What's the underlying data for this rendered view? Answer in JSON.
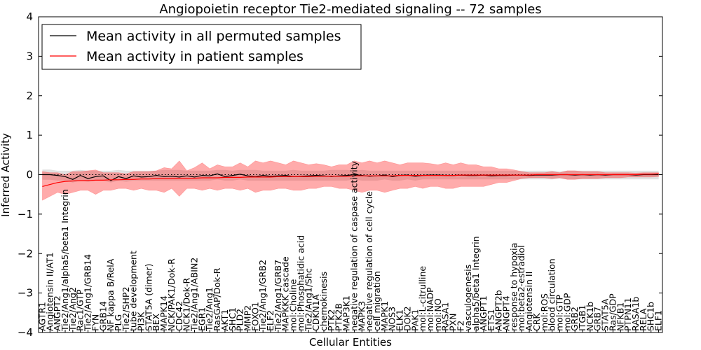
{
  "chart_data": {
    "type": "line",
    "title": "Angiopoietin receptor Tie2-mediated signaling -- 72 samples",
    "xlabel": "Cellular Entities",
    "ylabel": "Inferred Activity",
    "ylim": [
      -4,
      4
    ],
    "yticks": [
      "4",
      "3",
      "2",
      "1",
      "0",
      "−1",
      "−2",
      "−3",
      "−4"
    ],
    "legend_location": "top-left",
    "categories": [
      "AGTR1",
      "Angiotensin II/AT1",
      "ANGPT2",
      "Tie2/Ang1/alpha5/beta1 Integrin",
      "Tie2/Ang2",
      "Rac1/GTP",
      "Tie2/Ang1/GRB14",
      "FYN",
      "GRB14",
      "NF kappa B/RelA",
      "PLG",
      "Tie2/SHP2",
      "tube development",
      "PI3K",
      "STAT5A (dimer)",
      "BEX",
      "MAPK14",
      "NCK/PAK1/Dok-R",
      "CDC42",
      "NCK1/Dok-R",
      "Tie2/Ang1/ABIN2",
      "EGR1",
      "Tie2/Ang1",
      "RasGAP/Dok-R",
      "AKT1",
      "SHC1",
      "PLD2",
      "MMP2",
      "FOXO1",
      "Tie2/Ang1/GRB2",
      "ELF2",
      "Tie2/Ang1/GRB7",
      "MAPKKK cascade",
      "mol:Choline",
      "mol:Phosphatidic acid",
      "Tie2/Ang1/Shc",
      "CDKN1A",
      "chemokinesis",
      "PTK2",
      "PTK2B",
      "MAP3K1",
      "negative regulation of caspase activity",
      "MAPK3",
      "negative regulation of cell cycle",
      "cell migration",
      "MAPK1",
      "NOS3",
      "ELK1",
      "DOK2",
      "PAK1",
      "mol:L-citrulline",
      "mol:NADP",
      "mol:NO",
      "RASA1",
      "PXN",
      "F2",
      "vasculogenesis",
      "alpha5/beta1 Integrin",
      "ANGPT1",
      "ETS1",
      "ANGPT2b",
      "ANGPT4",
      "response to hypoxia",
      "mol:beta2-estradiol",
      "Angiotensin II",
      "CRK",
      "mol:ROS",
      "blood circulation",
      "mol:GTP",
      "mol:GDP",
      "GRB2",
      "ITGB1",
      "NCK1b",
      "GRB7",
      "STAT5A",
      "Ras/GDP",
      "NFKB1",
      "PTPN11",
      "RASA1b",
      "RELA",
      "SHC1b",
      "ELF1"
    ],
    "series": [
      {
        "name": "Mean activity in all permuted samples",
        "color": "#000000",
        "values": [
          0.0,
          0.0,
          -0.02,
          -0.05,
          -0.12,
          -0.02,
          -0.1,
          -0.05,
          -0.03,
          -0.15,
          -0.05,
          -0.1,
          -0.03,
          -0.06,
          -0.05,
          -0.02,
          -0.05,
          -0.04,
          -0.06,
          -0.03,
          -0.06,
          -0.02,
          -0.03,
          0.02,
          -0.05,
          -0.02,
          0.01,
          -0.03,
          -0.05,
          -0.02,
          -0.04,
          -0.03,
          -0.02,
          -0.05,
          -0.04,
          -0.03,
          -0.02,
          -0.03,
          -0.05,
          -0.03,
          -0.02,
          0.0,
          -0.02,
          -0.04,
          -0.03,
          -0.01,
          -0.05,
          -0.02,
          -0.01,
          -0.04,
          -0.02,
          -0.01,
          -0.01,
          -0.02,
          -0.02,
          -0.01,
          -0.02,
          -0.02,
          -0.01,
          -0.03,
          -0.02,
          -0.02,
          -0.01,
          -0.01,
          -0.02,
          -0.01,
          -0.01,
          -0.01,
          0.0,
          0.0,
          -0.01,
          0.0,
          -0.01,
          0.0,
          -0.01,
          0.0,
          0.0,
          0.0,
          -0.01,
          0.0,
          0.0,
          0.0
        ],
        "band_upper": [
          0.13,
          0.13,
          0.1,
          0.1,
          0.1,
          0.12,
          0.1,
          0.1,
          0.1,
          0.1,
          0.12,
          0.1,
          0.1,
          0.1,
          0.1,
          0.1,
          0.12,
          0.12,
          0.12,
          0.1,
          0.1,
          0.1,
          0.1,
          0.12,
          0.12,
          0.1,
          0.12,
          0.12,
          0.12,
          0.1,
          0.1,
          0.1,
          0.1,
          0.12,
          0.1,
          0.1,
          0.1,
          0.1,
          0.12,
          0.12,
          0.12,
          0.1,
          0.12,
          0.1,
          0.1,
          0.1,
          0.1,
          0.1,
          0.1,
          0.1,
          0.1,
          0.1,
          0.1,
          0.1,
          0.1,
          0.1,
          0.1,
          0.1,
          0.1,
          0.1,
          0.1,
          0.1,
          0.1,
          0.1,
          0.1,
          0.1,
          0.1,
          0.1,
          0.08,
          0.1,
          0.1,
          0.1,
          0.1,
          0.1,
          0.1,
          0.1,
          0.1,
          0.1,
          0.1,
          0.1,
          0.1,
          0.1
        ],
        "band_lower": [
          -0.13,
          -0.13,
          -0.15,
          -0.15,
          -0.2,
          -0.15,
          -0.18,
          -0.15,
          -0.15,
          -0.2,
          -0.15,
          -0.18,
          -0.15,
          -0.15,
          -0.15,
          -0.15,
          -0.15,
          -0.15,
          -0.15,
          -0.15,
          -0.15,
          -0.15,
          -0.15,
          -0.12,
          -0.15,
          -0.15,
          -0.12,
          -0.15,
          -0.15,
          -0.15,
          -0.15,
          -0.15,
          -0.15,
          -0.15,
          -0.15,
          -0.15,
          -0.15,
          -0.15,
          -0.15,
          -0.15,
          -0.15,
          -0.12,
          -0.15,
          -0.15,
          -0.15,
          -0.12,
          -0.15,
          -0.15,
          -0.12,
          -0.15,
          -0.12,
          -0.12,
          -0.12,
          -0.12,
          -0.12,
          -0.12,
          -0.12,
          -0.12,
          -0.12,
          -0.12,
          -0.12,
          -0.12,
          -0.12,
          -0.12,
          -0.12,
          -0.12,
          -0.12,
          -0.12,
          -0.1,
          -0.12,
          -0.12,
          -0.12,
          -0.12,
          -0.12,
          -0.12,
          -0.12,
          -0.12,
          -0.12,
          -0.12,
          -0.12,
          -0.12,
          -0.12
        ]
      },
      {
        "name": "Mean activity in patient samples",
        "color": "#ff0000",
        "values": [
          -0.3,
          -0.25,
          -0.2,
          -0.17,
          -0.16,
          -0.15,
          -0.15,
          -0.14,
          -0.14,
          -0.13,
          -0.13,
          -0.12,
          -0.12,
          -0.11,
          -0.11,
          -0.1,
          -0.1,
          -0.1,
          -0.09,
          -0.09,
          -0.09,
          -0.08,
          -0.08,
          -0.08,
          -0.07,
          -0.07,
          -0.07,
          -0.06,
          -0.06,
          -0.06,
          -0.06,
          -0.05,
          -0.05,
          -0.05,
          -0.05,
          -0.05,
          -0.04,
          -0.04,
          -0.04,
          -0.04,
          -0.04,
          -0.03,
          -0.03,
          -0.03,
          -0.03,
          -0.03,
          -0.03,
          -0.02,
          -0.02,
          -0.02,
          -0.02,
          -0.02,
          -0.02,
          -0.02,
          -0.02,
          -0.01,
          -0.01,
          -0.01,
          -0.01,
          -0.01,
          -0.01,
          -0.01,
          -0.01,
          -0.01,
          -0.01,
          0.0,
          0.0,
          0.0,
          0.0,
          0.0,
          0.0,
          0.0,
          0.0,
          0.0,
          0.0,
          0.0,
          0.0,
          0.0,
          0.0,
          0.01,
          0.01,
          0.02
        ],
        "band_upper": [
          0.08,
          0.05,
          0.05,
          0.0,
          0.08,
          0.08,
          0.1,
          0.12,
          0.05,
          0.05,
          0.05,
          0.02,
          0.08,
          0.08,
          0.08,
          0.1,
          0.18,
          0.15,
          0.35,
          0.1,
          0.18,
          0.3,
          0.15,
          0.25,
          0.2,
          0.2,
          0.3,
          0.2,
          0.35,
          0.3,
          0.35,
          0.3,
          0.25,
          0.35,
          0.3,
          0.25,
          0.28,
          0.25,
          0.2,
          0.25,
          0.25,
          0.35,
          0.3,
          0.35,
          0.3,
          0.35,
          0.3,
          0.25,
          0.3,
          0.3,
          0.3,
          0.28,
          0.25,
          0.3,
          0.25,
          0.3,
          0.25,
          0.25,
          0.2,
          0.2,
          0.15,
          0.15,
          0.12,
          0.08,
          0.05,
          0.05,
          0.05,
          0.08,
          0.05,
          0.1,
          0.1,
          0.08,
          0.08,
          0.08,
          0.05,
          0.05,
          0.05,
          0.05,
          0.04,
          0.05,
          0.05,
          0.05
        ],
        "band_lower": [
          -0.65,
          -0.55,
          -0.45,
          -0.5,
          -0.45,
          -0.4,
          -0.4,
          -0.5,
          -0.4,
          -0.4,
          -0.35,
          -0.35,
          -0.4,
          -0.35,
          -0.4,
          -0.4,
          -0.45,
          -0.35,
          -0.55,
          -0.35,
          -0.35,
          -0.4,
          -0.35,
          -0.4,
          -0.35,
          -0.35,
          -0.4,
          -0.35,
          -0.45,
          -0.4,
          -0.4,
          -0.35,
          -0.35,
          -0.4,
          -0.4,
          -0.35,
          -0.35,
          -0.3,
          -0.3,
          -0.35,
          -0.35,
          -0.4,
          -0.45,
          -0.4,
          -0.4,
          -0.45,
          -0.4,
          -0.35,
          -0.35,
          -0.3,
          -0.35,
          -0.3,
          -0.3,
          -0.35,
          -0.35,
          -0.3,
          -0.3,
          -0.3,
          -0.3,
          -0.25,
          -0.2,
          -0.2,
          -0.15,
          -0.1,
          -0.08,
          -0.08,
          -0.08,
          -0.1,
          -0.08,
          -0.12,
          -0.12,
          -0.1,
          -0.1,
          -0.1,
          -0.08,
          -0.08,
          -0.08,
          -0.06,
          -0.06,
          -0.06,
          -0.06,
          -0.05
        ]
      }
    ]
  }
}
